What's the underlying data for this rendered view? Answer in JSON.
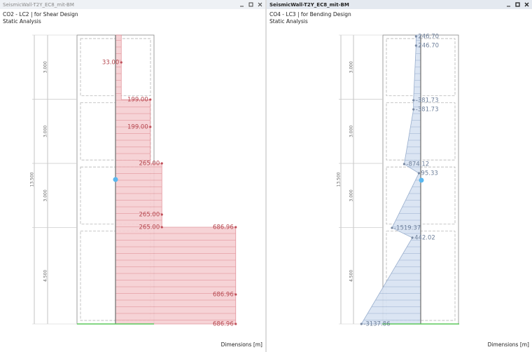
{
  "panels": [
    {
      "title": "SeismicWall-T2Y_EC8_mit-BM",
      "load_case": "CO2 - LC2 | for Shear Design",
      "analysis": "Static Analysis",
      "dimensions_label": "Dimensions [m]",
      "story_heights": [
        {
          "value": 3,
          "label": "3.000"
        },
        {
          "value": 3,
          "label": "3.000"
        },
        {
          "value": 3,
          "label": "3.000"
        },
        {
          "value": 4.5,
          "label": "4.500"
        }
      ],
      "total_height": {
        "value": 13.5,
        "label": "13.500"
      },
      "diagram": {
        "values": [
          33,
          199,
          199,
          265,
          265,
          265,
          686.96,
          686.96,
          686.96
        ],
        "value_labels": [
          "33.00",
          "199.00",
          "199.00",
          "265.00",
          "265.00",
          "265.00",
          "686.96",
          "686.96",
          "686.96"
        ]
      }
    },
    {
      "title": "SeismicWall-T2Y_EC8_mit-BM",
      "load_case": "CO4 - LC3 | for Bending Design",
      "analysis": "Static Analysis",
      "dimensions_label": "Dimensions [m]",
      "story_heights": [
        {
          "value": 3,
          "label": "3.000"
        },
        {
          "value": 3,
          "label": "3.000"
        },
        {
          "value": 3,
          "label": "3.000"
        },
        {
          "value": 4.5,
          "label": "4.500"
        }
      ],
      "total_height": {
        "value": 13.5,
        "label": "13.500"
      },
      "diagram": {
        "values": [
          246.7,
          246.7,
          -381.73,
          -381.73,
          -874.12,
          95.33,
          -1519.37,
          442.02,
          -3137.86
        ],
        "value_labels": [
          "246.70",
          "246.70",
          "-381.73",
          "-381.73",
          "-874.12",
          "95.33",
          "-1519.37",
          "442.02",
          "-3137.86"
        ]
      }
    }
  ]
}
